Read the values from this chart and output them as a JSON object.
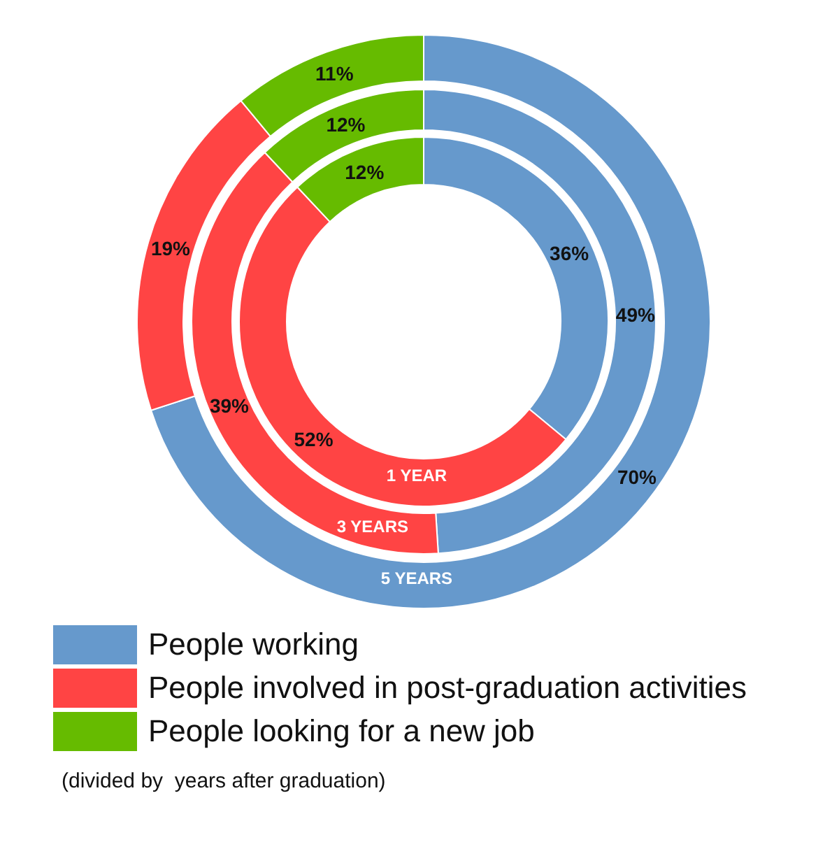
{
  "chart_data": {
    "type": "donut",
    "categories": [
      "People working",
      "People involved in post-graduation activities",
      "People looking for a new job"
    ],
    "colors": [
      "#6699cc",
      "#ff4444",
      "#66bb00"
    ],
    "series": [
      {
        "name": "1 YEAR",
        "values": [
          36,
          52,
          12
        ],
        "value_labels": [
          "36%",
          "52%",
          "12%"
        ]
      },
      {
        "name": "3 YEARS",
        "values": [
          49,
          39,
          12
        ],
        "value_labels": [
          "49%",
          "39%",
          "12%"
        ]
      },
      {
        "name": "5 YEARS",
        "values": [
          70,
          19,
          11
        ],
        "value_labels": [
          "70%",
          "19%",
          "11%"
        ]
      }
    ],
    "legend": "bottom",
    "annotations": [
      "(divided by  years after graduation)"
    ]
  }
}
